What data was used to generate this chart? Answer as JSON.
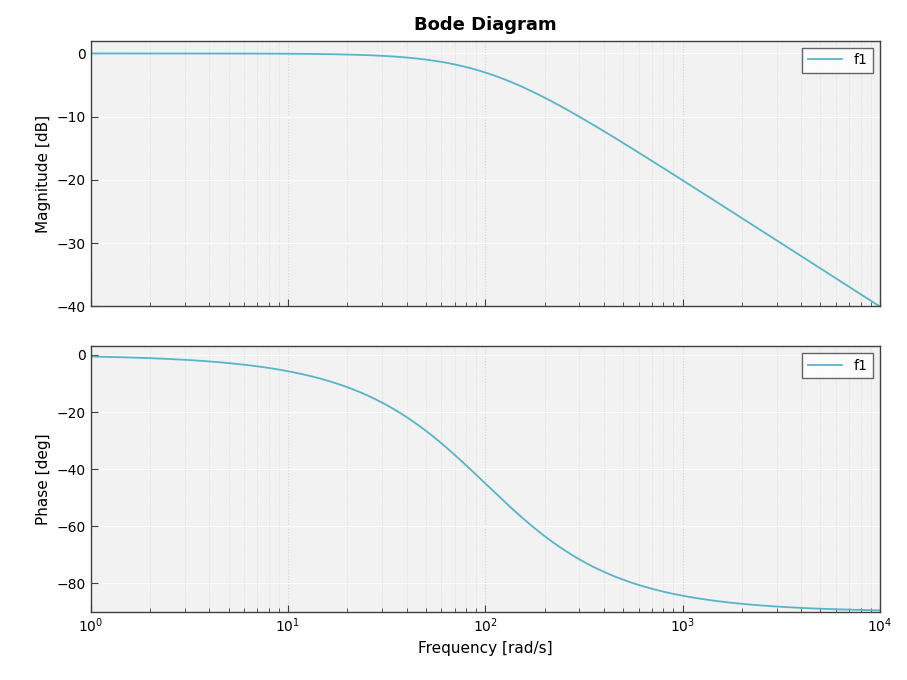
{
  "title": "Bode Diagram",
  "xlabel": "Frequency [rad/s]",
  "ylabel_mag": "Magnitude [dB]",
  "ylabel_phase": "Phase [deg]",
  "legend_label": "f1",
  "freq_range": [
    1,
    10000
  ],
  "mag_ylim": [
    -40,
    2
  ],
  "phase_ylim": [
    -90,
    3
  ],
  "mag_yticks": [
    0,
    -10,
    -20,
    -30,
    -40
  ],
  "phase_yticks": [
    0,
    -20,
    -40,
    -60,
    -80
  ],
  "line_color": "#5ab4c8",
  "background_color": "#ffffff",
  "plot_bg_color": "#f2f2f2",
  "grid_major_color": "#ffffff",
  "grid_minor_color": "#c8d8e0",
  "spine_color": "#404040",
  "transfer_function_omega": 100,
  "title_fontsize": 13,
  "label_fontsize": 11,
  "tick_fontsize": 10,
  "legend_fontsize": 10,
  "figsize": [
    9.07,
    6.8
  ],
  "dpi": 100
}
